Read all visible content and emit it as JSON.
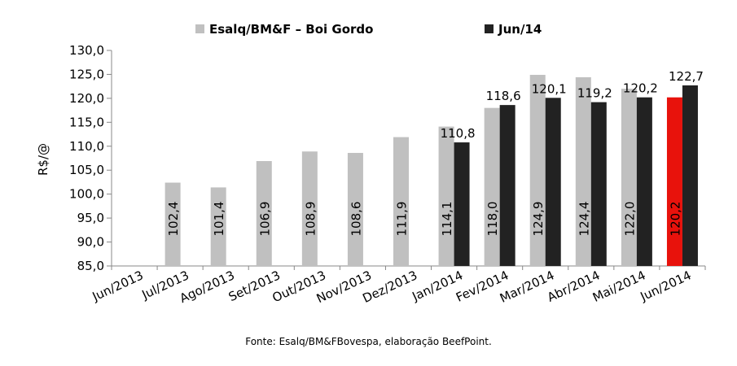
{
  "chart_data": {
    "type": "bar",
    "ylabel": "R$/@",
    "ylim": [
      85,
      130
    ],
    "yticks": [
      "85,0",
      "90,0",
      "95,0",
      "100,0",
      "105,0",
      "110,0",
      "115,0",
      "120,0",
      "125,0",
      "130,0"
    ],
    "ytick_values": [
      85,
      90,
      95,
      100,
      105,
      110,
      115,
      120,
      125,
      130
    ],
    "grid": false,
    "legend_placement": "top",
    "categories": [
      "Jun/2013",
      "Jul/2013",
      "Ago/2013",
      "Set/2013",
      "Out/2013",
      "Nov/2013",
      "Dez/2013",
      "Jan/2014",
      "Fev/2014",
      "Mar/2014",
      "Abr/2014",
      "Mai/2014",
      "Jun/2014"
    ],
    "series": [
      {
        "name": "Esalq/BM&F – Boi Gordo",
        "color": "#c0c0c0",
        "values": [
          null,
          102.4,
          101.4,
          106.9,
          108.9,
          108.6,
          111.9,
          114.1,
          118.0,
          124.9,
          124.4,
          122.0,
          120.2
        ],
        "labels": [
          "",
          "102,4",
          "101,4",
          "106,9",
          "108,9",
          "108,6",
          "111,9",
          "114,1",
          "118,0",
          "124,9",
          "124,4",
          "122,0",
          "120,2"
        ],
        "highlight_index": 12,
        "highlight_color": "#e8120c"
      },
      {
        "name": "Jun/14",
        "color": "#222222",
        "values": [
          null,
          null,
          null,
          null,
          null,
          null,
          null,
          110.8,
          118.6,
          120.1,
          119.2,
          120.2,
          122.7
        ],
        "labels": [
          "",
          "",
          "",
          "",
          "",
          "",
          "",
          "110,8",
          "118,6",
          "120,1",
          "119,2",
          "120,2",
          "122,7"
        ]
      }
    ]
  },
  "source_note": "Fonte:  Esalq/BM&FBovespa,  elaboração  BeefPoint."
}
